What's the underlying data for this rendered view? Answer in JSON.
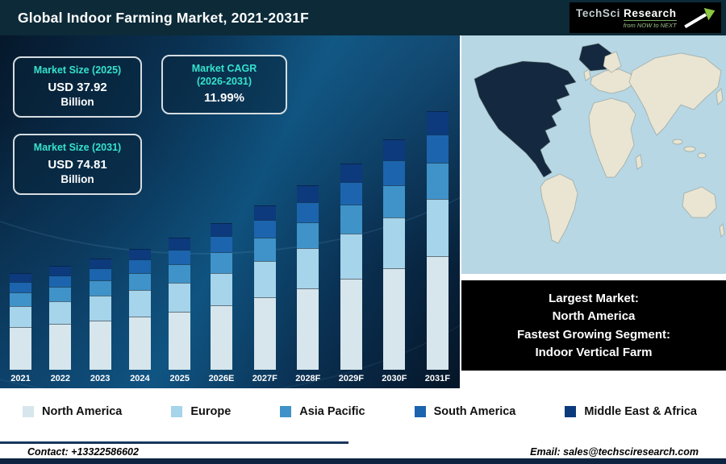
{
  "header": {
    "title": "Global Indoor Farming Market, 2021-2031F",
    "logo": {
      "brand_tech": "TechSci",
      "brand_research": "Research",
      "tagline": "from NOW to NEXT"
    }
  },
  "stats": {
    "box_2025": {
      "title": "Market Size (2025)",
      "value": "USD 37.92",
      "unit": "Billion"
    },
    "box_cagr": {
      "title_line1": "Market CAGR",
      "title_line2": "(2026-2031)",
      "value": "11.99%"
    },
    "box_2031": {
      "title": "Market Size (2031)",
      "value": "USD 74.81",
      "unit": "Billion"
    }
  },
  "chart_data": {
    "type": "bar",
    "stacked": true,
    "title": "Global Indoor Farming Market, 2021-2031F",
    "unit": "USD Billion",
    "ylim": [
      0,
      80
    ],
    "grid": false,
    "legend_position": "bottom",
    "categories": [
      "2021",
      "2022",
      "2023",
      "2024",
      "2025",
      "2026E",
      "2027F",
      "2028F",
      "2029F",
      "2030F",
      "2031F"
    ],
    "series": [
      {
        "name": "North America",
        "color": "#d6e6ec",
        "values": [
          12.3,
          13.2,
          14.3,
          15.4,
          16.7,
          18.7,
          20.9,
          23.5,
          26.2,
          29.4,
          32.9
        ]
      },
      {
        "name": "Europe",
        "color": "#a6d4ea",
        "values": [
          6.1,
          6.6,
          7.1,
          7.7,
          8.3,
          9.4,
          10.5,
          11.7,
          13.1,
          14.7,
          16.5
        ]
      },
      {
        "name": "Asia Pacific",
        "color": "#3f93c8",
        "values": [
          3.9,
          4.2,
          4.5,
          4.9,
          5.3,
          6.0,
          6.7,
          7.5,
          8.3,
          9.4,
          10.5
        ]
      },
      {
        "name": "South America",
        "color": "#1c64ad",
        "values": [
          3.1,
          3.3,
          3.6,
          3.9,
          4.2,
          4.7,
          5.2,
          5.9,
          6.6,
          7.3,
          8.2
        ]
      },
      {
        "name": "Middle East & Africa",
        "color": "#0d3a7c",
        "values": [
          2.5,
          2.7,
          2.9,
          3.1,
          3.4,
          3.8,
          4.3,
          4.8,
          5.4,
          6.0,
          6.7
        ]
      }
    ],
    "annotations": {
      "market_size_2025": "USD 37.92 Billion",
      "market_size_2031": "USD 74.81 Billion",
      "cagr_2026_2031": "11.99%"
    }
  },
  "map_panel": {
    "highlight_lines": [
      "Largest Market:",
      "North America",
      "Fastest Growing Segment:",
      "Indoor Vertical Farm"
    ],
    "highlight_color": "#14293f",
    "land_color": "#e9e5d2",
    "ocean_color": "#b7d7e5"
  },
  "legend": {
    "items": [
      {
        "label": "North America",
        "color": "#d6e6ec"
      },
      {
        "label": "Europe",
        "color": "#a6d4ea"
      },
      {
        "label": "Asia Pacific",
        "color": "#3f93c8"
      },
      {
        "label": "South America",
        "color": "#1c64ad"
      },
      {
        "label": "Middle East & Africa",
        "color": "#0d3a7c"
      }
    ]
  },
  "footer": {
    "contact": "Contact: +13322586602",
    "email": "Email: sales@techsciresearch.com"
  }
}
